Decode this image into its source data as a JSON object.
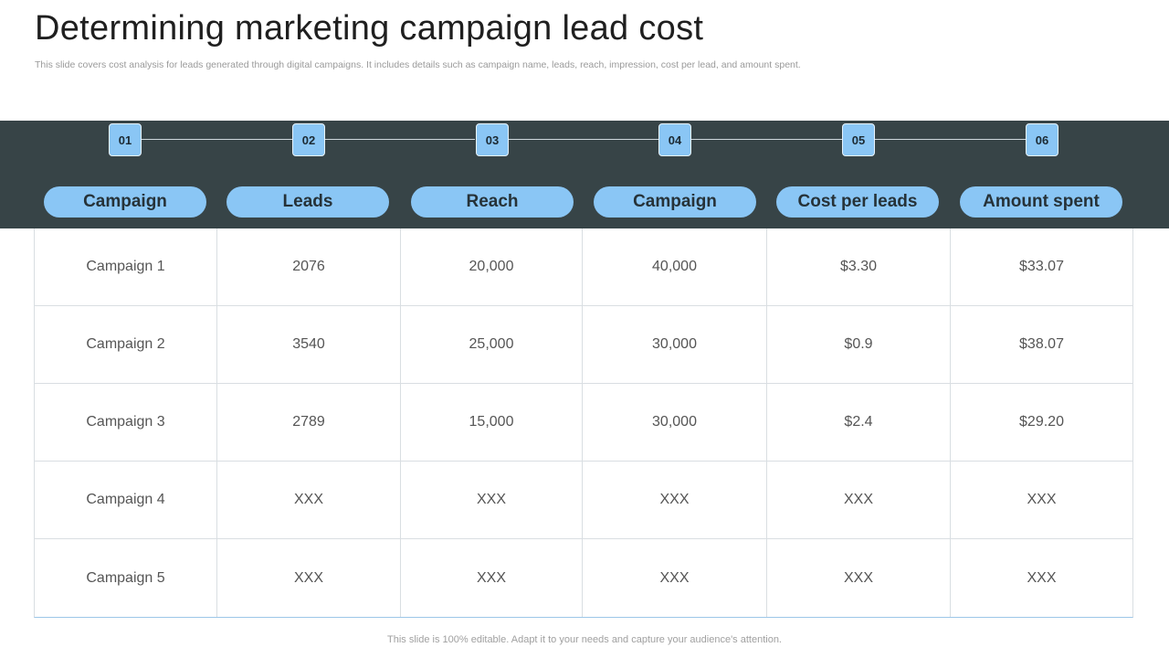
{
  "title": "Determining marketing campaign lead cost",
  "subtitle": "This slide covers cost analysis for leads generated through digital campaigns. It includes details such as campaign name, leads, reach, impression, cost per lead, and amount spent.",
  "steps": [
    "01",
    "02",
    "03",
    "04",
    "05",
    "06"
  ],
  "headers": [
    "Campaign",
    "Leads",
    "Reach",
    "Campaign",
    "Cost per leads",
    "Amount spent"
  ],
  "rows": [
    [
      "Campaign 1",
      "2076",
      "20,000",
      "40,000",
      "$3.30",
      "$33.07"
    ],
    [
      "Campaign 2",
      "3540",
      "25,000",
      "30,000",
      "$0.9",
      "$38.07"
    ],
    [
      "Campaign 3",
      "2789",
      "15,000",
      "30,000",
      "$2.4",
      "$29.20"
    ],
    [
      "Campaign 4",
      "XXX",
      "XXX",
      "XXX",
      "XXX",
      "XXX"
    ],
    [
      "Campaign 5",
      "XXX",
      "XXX",
      "XXX",
      "XXX",
      "XXX"
    ]
  ],
  "footer": "This slide is 100% editable. Adapt it to your needs and capture your audience's attention.",
  "colors": {
    "band": "#374447",
    "accent": "#8ac6f5"
  }
}
